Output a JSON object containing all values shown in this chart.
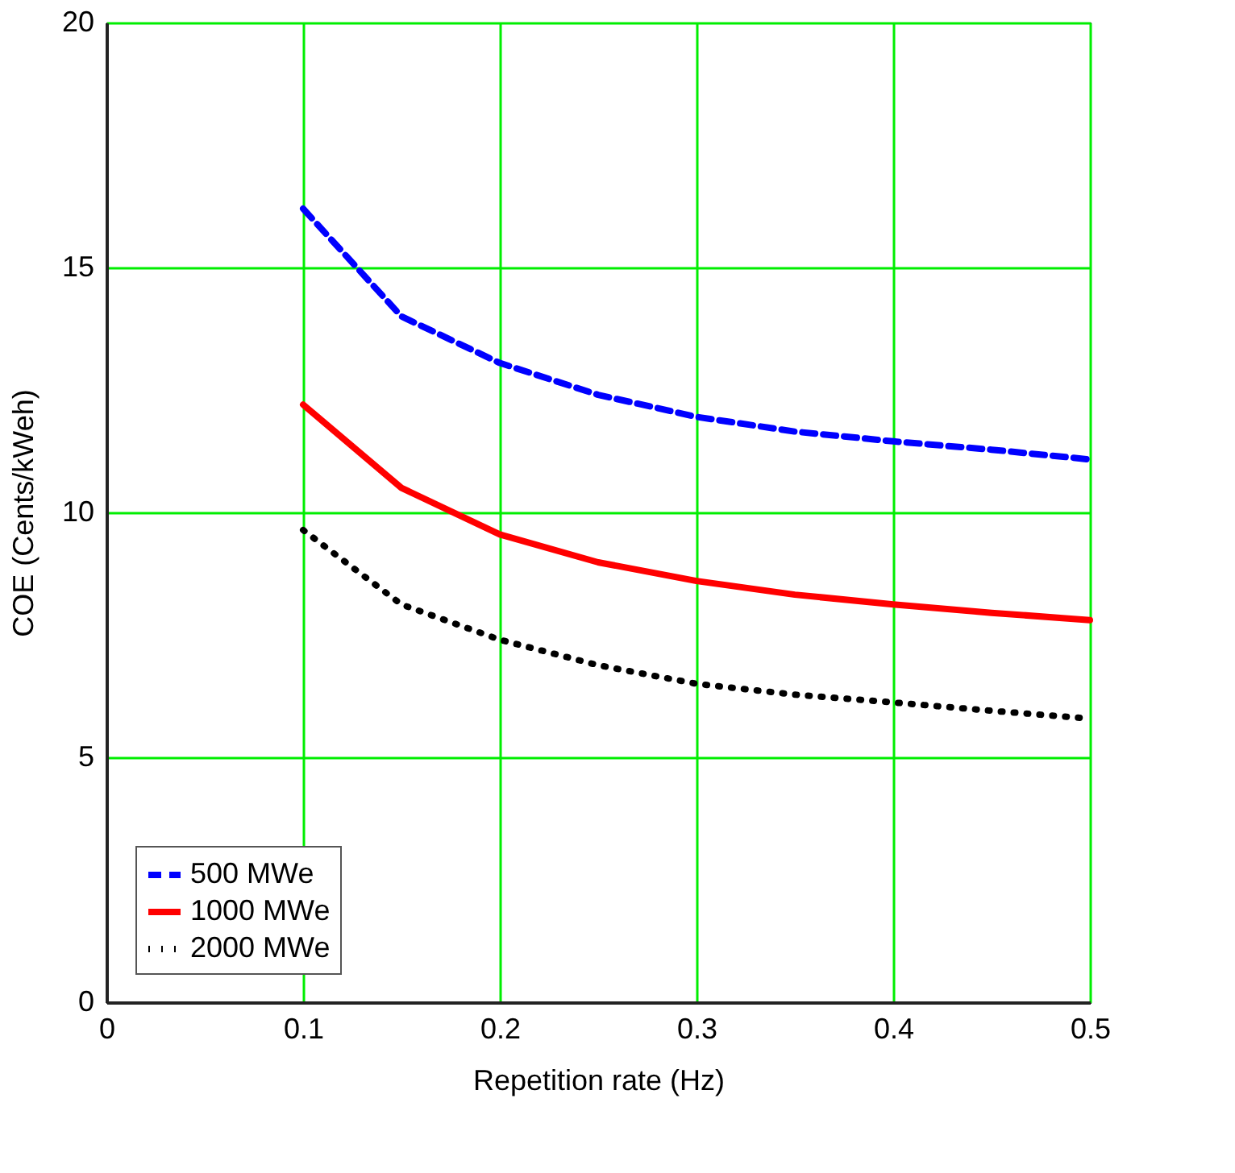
{
  "chart_data": {
    "type": "line",
    "xlabel": "Repetition rate (Hz)",
    "ylabel": "COE (Cents/kWeh)",
    "x": [
      0.1,
      0.15,
      0.2,
      0.25,
      0.3,
      0.35,
      0.4,
      0.45,
      0.5
    ],
    "xlim": [
      0,
      0.5
    ],
    "xticks": [
      0,
      0.1,
      0.2,
      0.3,
      0.4,
      0.5
    ],
    "ylim": [
      0,
      20
    ],
    "yticks": [
      0,
      5,
      10,
      15,
      20
    ],
    "grid": true,
    "legend": "bottom left",
    "marker": "none",
    "series": [
      {
        "name": "500 MWe",
        "color": "#0000ff",
        "line_style": "dashed",
        "values": [
          16.2,
          14.0,
          13.05,
          12.4,
          11.95,
          11.65,
          11.45,
          11.28,
          11.08
        ]
      },
      {
        "name": "1000 MWe",
        "color": "#ff0000",
        "line_style": "solid",
        "values": [
          12.2,
          10.5,
          9.55,
          8.98,
          8.6,
          8.32,
          8.12,
          7.95,
          7.8
        ]
      },
      {
        "name": "2000 MWe",
        "color": "#000000",
        "line_style": "dotted",
        "values": [
          9.64,
          8.12,
          7.4,
          6.88,
          6.5,
          6.28,
          6.12,
          5.95,
          5.79
        ]
      }
    ]
  }
}
